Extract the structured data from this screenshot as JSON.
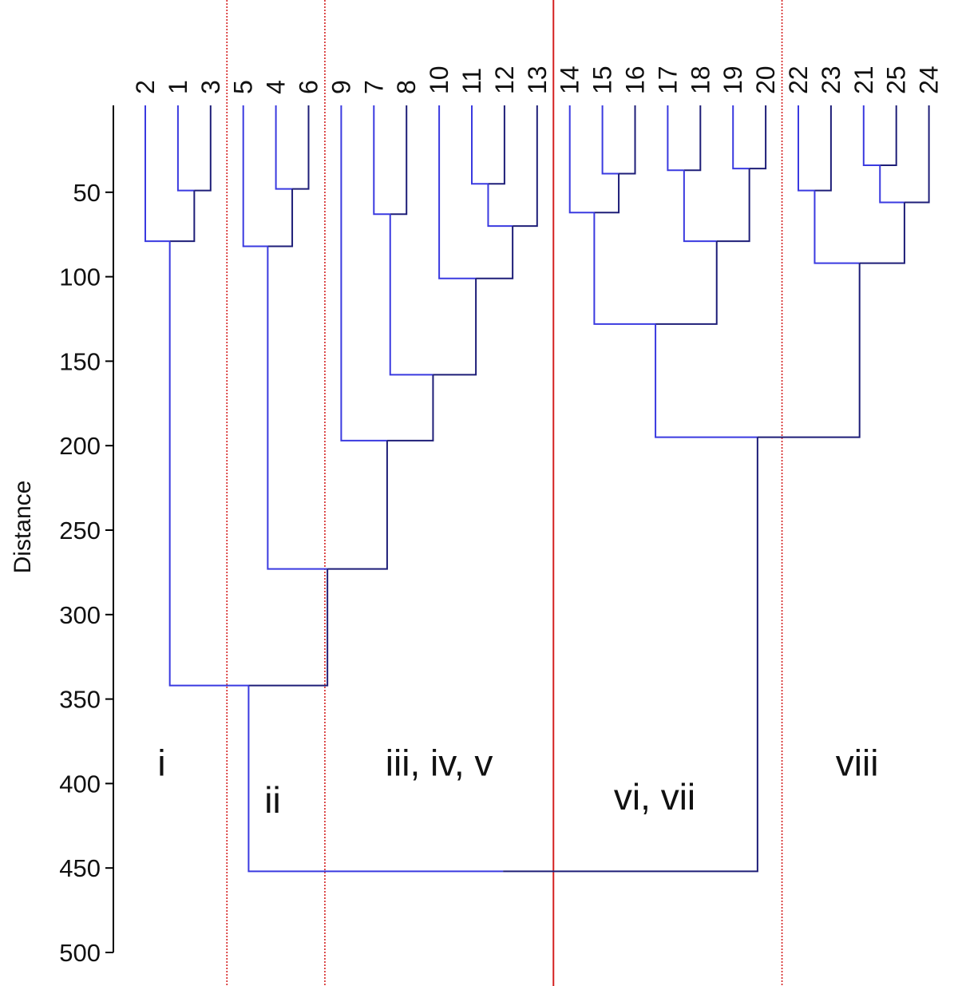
{
  "chart_data": {
    "type": "dendrogram",
    "title": "",
    "ylabel": "Distance",
    "xlabel": "",
    "ylim": [
      0,
      500
    ],
    "yticks": [
      50,
      100,
      150,
      200,
      250,
      300,
      350,
      400,
      450,
      500
    ],
    "leaf_order": [
      "2",
      "1",
      "3",
      "5",
      "4",
      "6",
      "9",
      "7",
      "8",
      "10",
      "11",
      "12",
      "13",
      "14",
      "15",
      "16",
      "17",
      "18",
      "19",
      "20",
      "22",
      "23",
      "21",
      "25",
      "24"
    ],
    "merges": [
      {
        "id": "m_1_3",
        "left": "1",
        "right": "3",
        "height": 49
      },
      {
        "id": "m_2_13",
        "left": "2",
        "right": "m_1_3",
        "height": 79
      },
      {
        "id": "m_4_6",
        "left": "4",
        "right": "6",
        "height": 48
      },
      {
        "id": "m_5_46",
        "left": "5",
        "right": "m_4_6",
        "height": 82
      },
      {
        "id": "m_7_8",
        "left": "7",
        "right": "8",
        "height": 63
      },
      {
        "id": "m_11_12",
        "left": "11",
        "right": "12",
        "height": 45
      },
      {
        "id": "m_1112_13",
        "left": "m_11_12",
        "right": "13",
        "height": 70
      },
      {
        "id": "m_10_g",
        "left": "10",
        "right": "m_1112_13",
        "height": 101
      },
      {
        "id": "m_78_g",
        "left": "m_7_8",
        "right": "m_10_g",
        "height": 158
      },
      {
        "id": "m_9_g",
        "left": "9",
        "right": "m_78_g",
        "height": 197
      },
      {
        "id": "m_ii_iii",
        "left": "m_5_46",
        "right": "m_9_g",
        "height": 273
      },
      {
        "id": "m_i_rest",
        "left": "m_2_13",
        "right": "m_ii_iii",
        "height": 342
      },
      {
        "id": "m_15_16",
        "left": "15",
        "right": "16",
        "height": 39
      },
      {
        "id": "m_14_g",
        "left": "14",
        "right": "m_15_16",
        "height": 62
      },
      {
        "id": "m_17_18",
        "left": "17",
        "right": "18",
        "height": 37
      },
      {
        "id": "m_19_20",
        "left": "19",
        "right": "20",
        "height": 36
      },
      {
        "id": "m_1718_1920",
        "left": "m_17_18",
        "right": "m_19_20",
        "height": 79
      },
      {
        "id": "m_vi_vii",
        "left": "m_14_g",
        "right": "m_1718_1920",
        "height": 128
      },
      {
        "id": "m_22_23",
        "left": "22",
        "right": "23",
        "height": 49
      },
      {
        "id": "m_21_25",
        "left": "21",
        "right": "25",
        "height": 34
      },
      {
        "id": "m_2125_24",
        "left": "m_21_25",
        "right": "24",
        "height": 56
      },
      {
        "id": "m_viii",
        "left": "m_22_23",
        "right": "m_2125_24",
        "height": 92
      },
      {
        "id": "m_vi_viii",
        "left": "m_vi_vii",
        "right": "m_viii",
        "height": 195
      },
      {
        "id": "m_root",
        "left": "m_i_rest",
        "right": "m_vi_viii",
        "height": 452
      }
    ],
    "cluster_labels": [
      {
        "text": "i",
        "center_leaf": 0.5,
        "distance": 385
      },
      {
        "text": "ii",
        "center_leaf": 3.9,
        "distance": 407
      },
      {
        "text": "iii, iv, v",
        "center_leaf": 9.0,
        "distance": 385
      },
      {
        "text": "vi, vii",
        "center_leaf": 15.6,
        "distance": 405
      },
      {
        "text": "viii",
        "center_leaf": 21.8,
        "distance": 385
      }
    ],
    "boundaries": [
      {
        "between_leaves": [
          2,
          3
        ],
        "style": "dotted"
      },
      {
        "between_leaves": [
          5,
          6
        ],
        "style": "dotted"
      },
      {
        "between_leaves": [
          12,
          13
        ],
        "style": "solid"
      },
      {
        "between_leaves": [
          19,
          20
        ],
        "style": "dotted"
      }
    ],
    "colors": {
      "axis": "#000000",
      "link_light": "#3a3ae0",
      "link_dark": "#1e1e78",
      "boundary": "#d42020",
      "text": "#111111"
    }
  }
}
